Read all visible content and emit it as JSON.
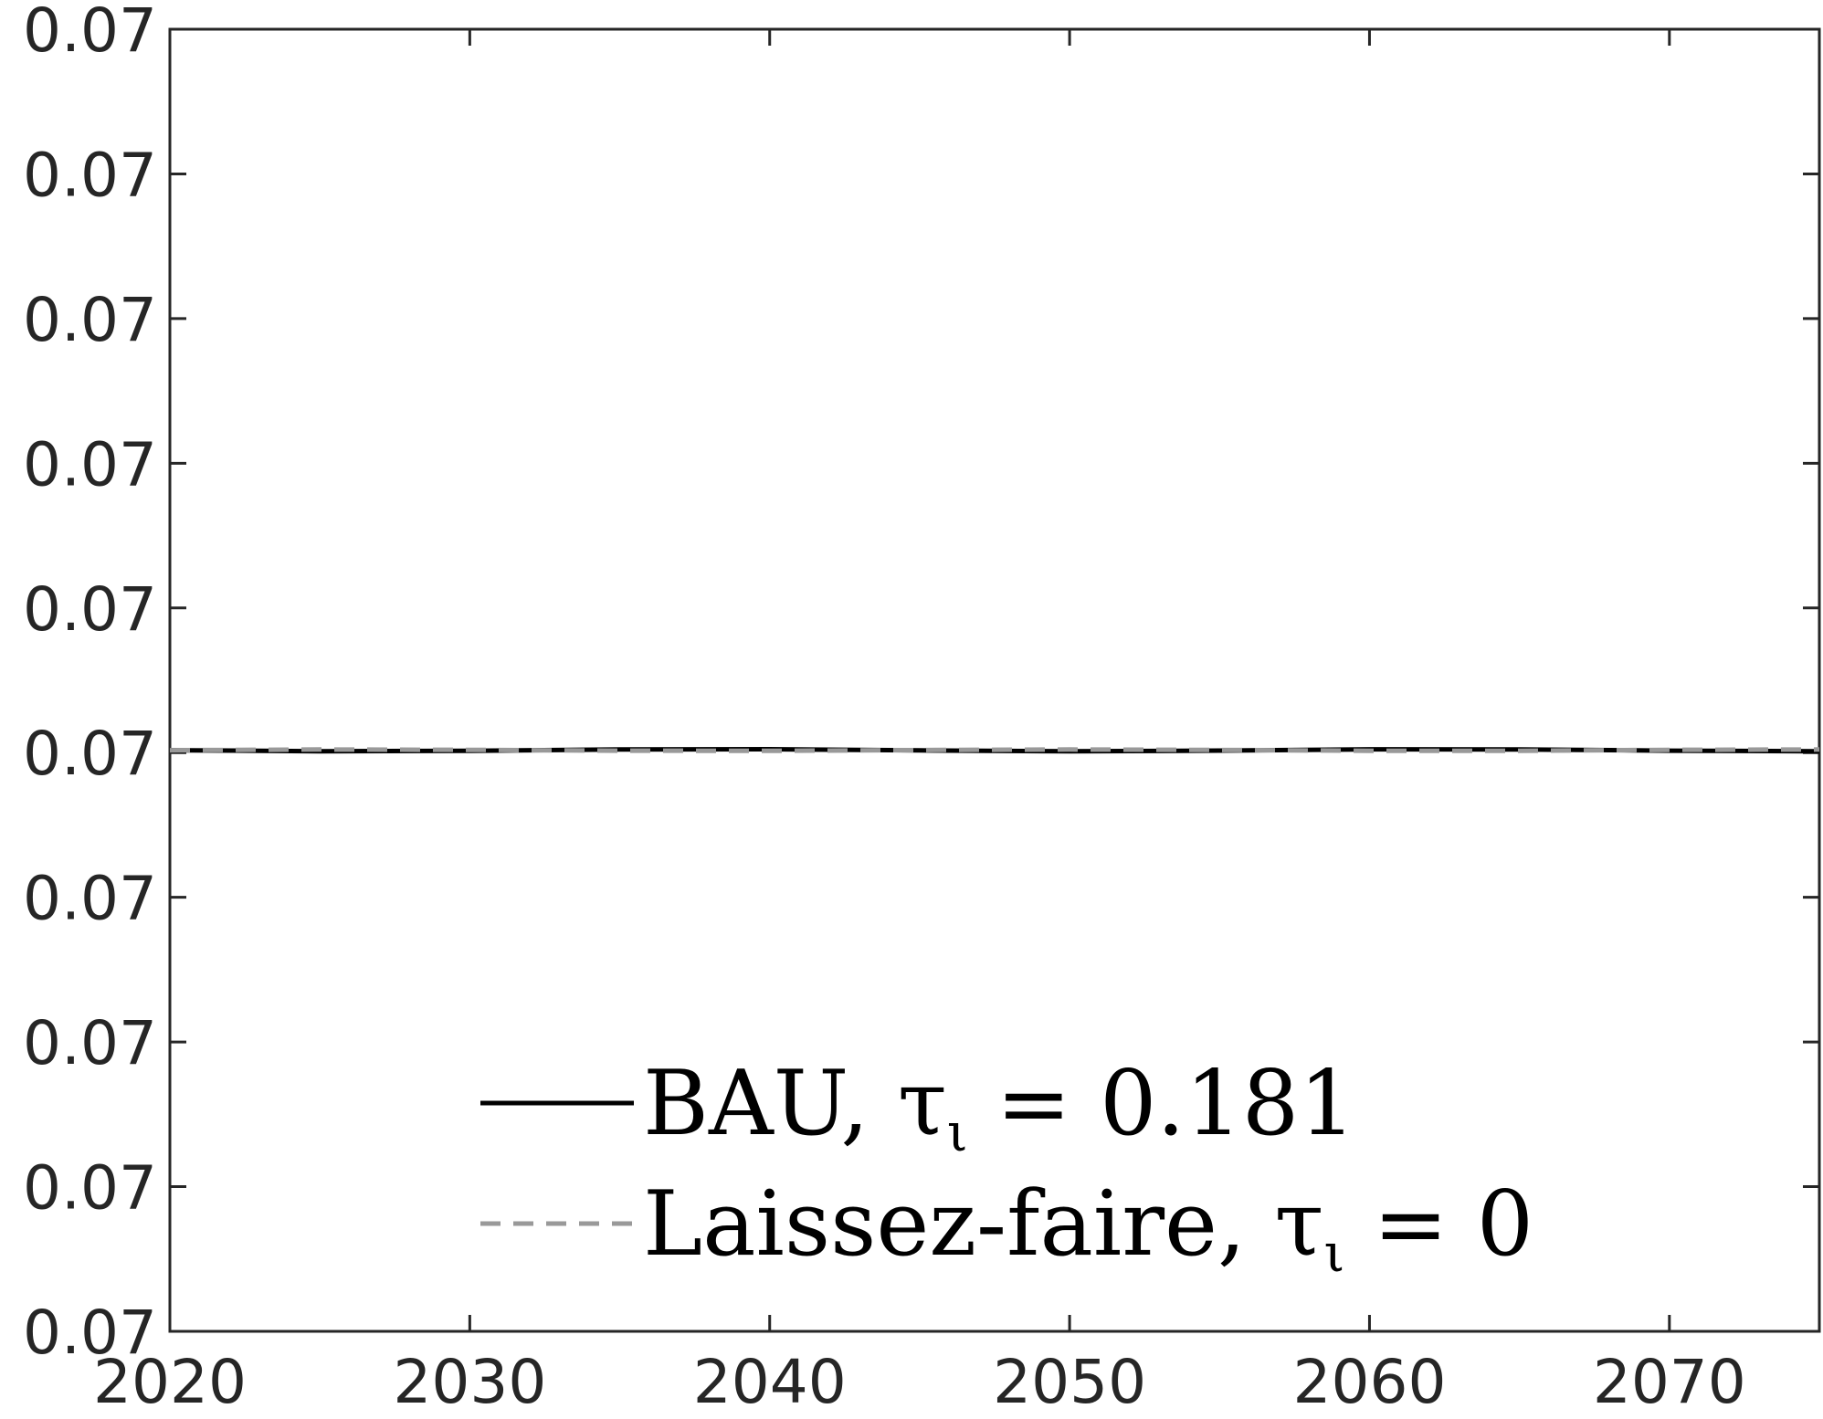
{
  "chart_data": {
    "type": "line",
    "title": "",
    "xlabel": "",
    "ylabel": "",
    "xlim": [
      2020,
      2075
    ],
    "x_ticks": [
      2020,
      2030,
      2040,
      2050,
      2060,
      2070
    ],
    "x_tick_labels": [
      "2020",
      "2030",
      "2040",
      "2050",
      "2060",
      "2070"
    ],
    "y_tick_labels": [
      "0.07",
      "0.07",
      "0.07",
      "0.07",
      "0.07",
      "0.07",
      "0.07",
      "0.07",
      "0.07",
      "0.07"
    ],
    "y_tick_count": 10,
    "grid": false,
    "legend_position": "bottom-center",
    "series": [
      {
        "name": "BAU, τ_ι = 0.181",
        "legend_main": "BAU, τ",
        "legend_sub": "ι",
        "legend_rest": " = 0.181",
        "color": "#000000",
        "style": "solid",
        "x": [
          2020,
          2025,
          2030,
          2035,
          2040,
          2045,
          2050,
          2055,
          2060,
          2065,
          2070,
          2075
        ],
        "y": [
          0.07,
          0.07,
          0.07,
          0.07,
          0.07,
          0.07,
          0.07,
          0.07,
          0.07,
          0.07,
          0.07,
          0.07
        ]
      },
      {
        "name": "Laissez-faire, τ_ι = 0",
        "legend_main": "Laissez-faire, τ",
        "legend_sub": "ι",
        "legend_rest": " = 0",
        "color": "#999999",
        "style": "dashed",
        "x": [
          2020,
          2025,
          2030,
          2035,
          2040,
          2045,
          2050,
          2055,
          2060,
          2065,
          2070,
          2075
        ],
        "y": [
          0.07,
          0.07,
          0.07,
          0.07,
          0.07,
          0.07,
          0.07,
          0.07,
          0.07,
          0.07,
          0.07,
          0.07
        ]
      }
    ]
  }
}
